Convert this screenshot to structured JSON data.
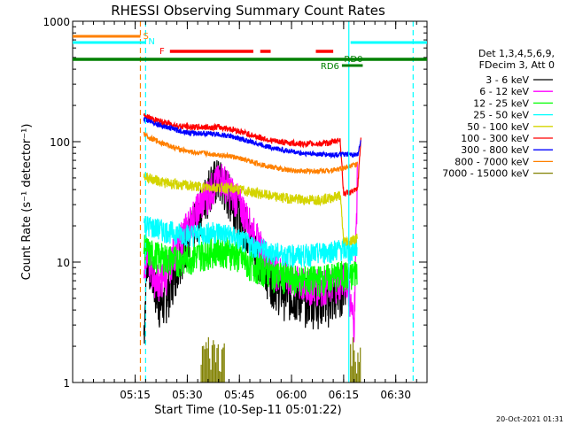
{
  "chart_data": {
    "type": "line",
    "title": "RHESSI Observing Summary Count Rates",
    "xlabel": "Start Time (10-Sep-11 05:01:22)",
    "ylabel": "Count Rate (s⁻¹ detector⁻¹)",
    "y_scale": "log",
    "ylim": [
      1,
      1000
    ],
    "xlim_minutes": [
      -4,
      98
    ],
    "x_ticks": [
      {
        "min": 14,
        "label": "05:15"
      },
      {
        "min": 29,
        "label": "05:30"
      },
      {
        "min": 44,
        "label": "05:45"
      },
      {
        "min": 59,
        "label": "06:00"
      },
      {
        "min": 74,
        "label": "06:15"
      },
      {
        "min": 89,
        "label": "06:30"
      }
    ],
    "y_ticks": [
      {
        "value": 1,
        "label": "1"
      },
      {
        "value": 10,
        "label": "10"
      },
      {
        "value": 100,
        "label": "100"
      },
      {
        "value": 1000,
        "label": "1000"
      }
    ],
    "legend_header": [
      "Det 1,3,4,5,6,9,",
      "FDecim 3, Att 0"
    ],
    "legend_placement": "right",
    "series": [
      {
        "name": "3 - 6 keV",
        "color": "#000000",
        "x": [
          16.5,
          17.5,
          19,
          20.5,
          22,
          23.5,
          25,
          27,
          30,
          33,
          36,
          38,
          40,
          42,
          44,
          47,
          50,
          53,
          56,
          59,
          62,
          65,
          68,
          71,
          73,
          75
        ],
        "y": [
          2.5,
          12,
          8,
          5,
          4.5,
          6,
          8,
          12,
          18,
          30,
          48,
          50,
          42,
          34,
          26,
          17,
          11,
          8,
          6,
          5.5,
          5.2,
          5,
          5,
          5,
          6,
          8
        ]
      },
      {
        "name": "6 - 12 keV",
        "color": "#ff00ff",
        "x": [
          16.5,
          17.5,
          19,
          21,
          23,
          25,
          28,
          31,
          34,
          37,
          39,
          41,
          43,
          45,
          48,
          51,
          54,
          57,
          60,
          63,
          66,
          69,
          72,
          75,
          77,
          78
        ],
        "y": [
          9,
          12,
          8,
          7,
          8,
          12,
          18,
          25,
          35,
          45,
          52,
          42,
          35,
          28,
          18,
          12,
          9,
          8,
          7,
          6.5,
          6.5,
          6.5,
          7,
          7.5,
          3,
          60
        ]
      },
      {
        "name": "12 - 25 keV",
        "color": "#00ff00",
        "x": [
          16.5,
          18,
          22,
          26,
          30,
          34,
          38,
          42,
          46,
          50,
          54,
          58,
          62,
          66,
          70,
          74,
          76,
          78
        ],
        "y": [
          14,
          12,
          11,
          10.5,
          11,
          12,
          13,
          12,
          10,
          9,
          8,
          7.5,
          7.2,
          7.2,
          7.5,
          8,
          7.5,
          9
        ]
      },
      {
        "name": "25 - 50 keV",
        "color": "#00ffff",
        "x": [
          16.5,
          18,
          22,
          26,
          30,
          34,
          38,
          42,
          46,
          50,
          54,
          58,
          62,
          66,
          70,
          74,
          76,
          78
        ],
        "y": [
          21,
          20,
          18.5,
          17.5,
          17,
          17.5,
          18,
          16.5,
          14.5,
          13,
          12,
          11.5,
          11.5,
          11.8,
          12.5,
          13,
          12,
          14
        ]
      },
      {
        "name": "50 - 100 keV",
        "color": "#d4d400",
        "x": [
          16.5,
          18,
          22,
          26,
          30,
          34,
          38,
          42,
          46,
          50,
          54,
          58,
          62,
          66,
          70,
          73,
          74,
          76,
          78
        ],
        "y": [
          52,
          50,
          46,
          44,
          43,
          42,
          42,
          41,
          39,
          37,
          35,
          34,
          33,
          33,
          34,
          36,
          15,
          15,
          16
        ]
      },
      {
        "name": "100 - 300 keV",
        "color": "#ff0000",
        "x": [
          16.5,
          18,
          22,
          26,
          30,
          34,
          38,
          42,
          46,
          50,
          54,
          58,
          62,
          66,
          70,
          73,
          74,
          76,
          78,
          79
        ],
        "y": [
          165,
          158,
          145,
          136,
          132,
          132,
          132,
          127,
          117,
          108,
          101,
          98,
          96,
          96,
          98,
          104,
          37,
          38,
          40,
          110
        ]
      },
      {
        "name": "300 - 800 keV",
        "color": "#0000ff",
        "x": [
          16.5,
          18,
          22,
          26,
          30,
          34,
          38,
          42,
          46,
          50,
          54,
          58,
          62,
          66,
          70,
          74,
          76,
          78,
          79
        ],
        "y": [
          155,
          148,
          135,
          125,
          118,
          117,
          115,
          110,
          102,
          95,
          88,
          84,
          80,
          79,
          78,
          78,
          78,
          78,
          100
        ]
      },
      {
        "name": "800 - 7000 keV",
        "color": "#ff8000",
        "x": [
          16.5,
          18,
          22,
          26,
          30,
          34,
          38,
          42,
          46,
          50,
          54,
          58,
          62,
          66,
          70,
          74,
          76,
          78
        ],
        "y": [
          115,
          108,
          97,
          88,
          82,
          80,
          78,
          75,
          70,
          65,
          61,
          58,
          57,
          57,
          58,
          60,
          64,
          65
        ]
      },
      {
        "name": "7000 - 15000 keV",
        "color": "#808000",
        "x": [],
        "y": []
      }
    ],
    "annotations": {
      "top_labels": [
        {
          "text": "S",
          "color": "#ff8000"
        },
        {
          "text": "N",
          "color": "#00ffff"
        },
        {
          "text": "F",
          "color": "#ff0000"
        },
        {
          "text": "RD0",
          "color": "#008000"
        },
        {
          "text": "RD6",
          "color": "#008000"
        }
      ],
      "footer_date": "20-Oct-2021 01:31"
    }
  }
}
